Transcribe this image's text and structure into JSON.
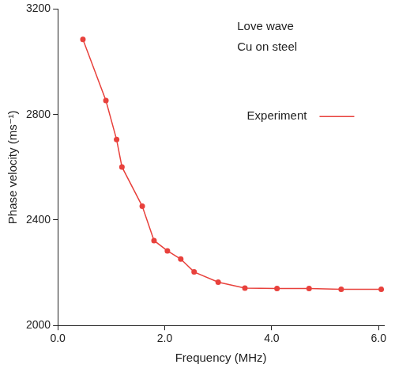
{
  "chart_data": {
    "type": "line",
    "annotations": [
      "Love wave",
      "Cu on steel"
    ],
    "x_label": "Frequency (MHz)",
    "y_label": "Phase velocity (ms⁻¹)",
    "x": [
      0.47,
      0.9,
      1.1,
      1.2,
      1.58,
      1.8,
      2.05,
      2.3,
      2.55,
      3.0,
      3.5,
      4.1,
      4.7,
      5.3,
      6.05
    ],
    "series": [
      {
        "name": "Experiment",
        "color": "#e8413c",
        "marker": "circle",
        "line_style": "solid",
        "values": [
          3085,
          2853,
          2705,
          2601,
          2452,
          2322,
          2283,
          2252,
          2203,
          2164,
          2142,
          2140,
          2140,
          2137,
          2137
        ]
      }
    ],
    "xlim": [
      0,
      6.1
    ],
    "xticks": [
      {
        "value": 0,
        "label": "0.0"
      },
      {
        "value": 2,
        "label": "2.0"
      },
      {
        "value": 4,
        "label": "4.0"
      },
      {
        "value": 6,
        "label": "6.0"
      }
    ],
    "ylim": [
      2000,
      3200
    ],
    "yticks": [
      2000,
      2400,
      2800,
      3200
    ],
    "grid": false,
    "legend": "upper right"
  }
}
